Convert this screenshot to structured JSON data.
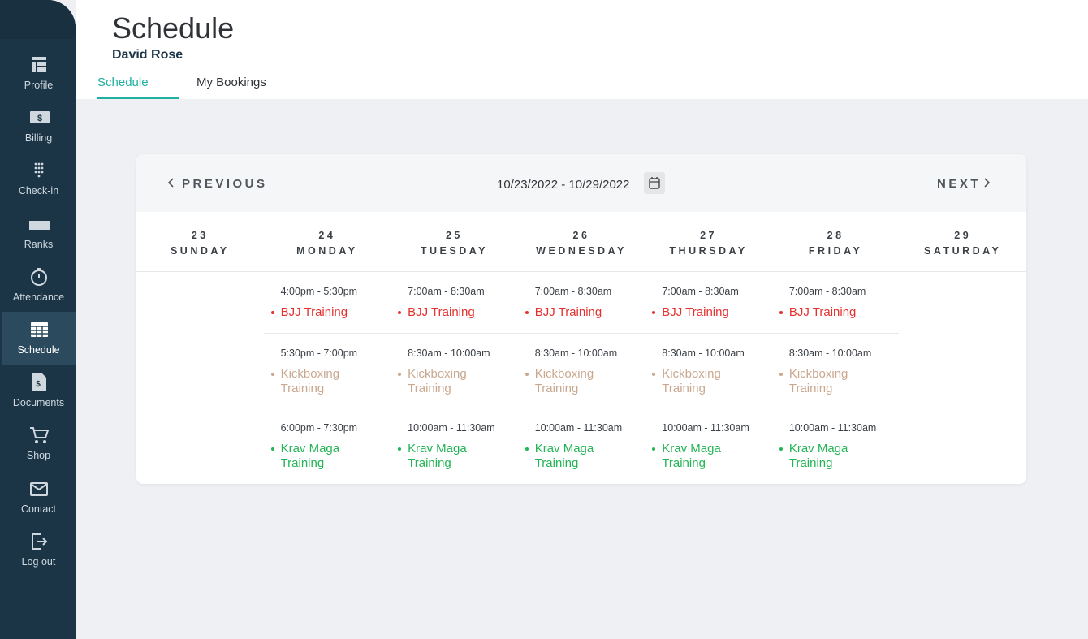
{
  "sidebar": {
    "items": [
      {
        "label": "Profile"
      },
      {
        "label": "Billing"
      },
      {
        "label": "Check-in"
      },
      {
        "label": "Ranks"
      },
      {
        "label": "Attendance"
      },
      {
        "label": "Schedule",
        "active": true
      },
      {
        "label": "Documents"
      },
      {
        "label": "Shop"
      },
      {
        "label": "Contact"
      },
      {
        "label": "Log out"
      }
    ]
  },
  "header": {
    "title": "Schedule",
    "subtitle": "David Rose",
    "tabs": [
      {
        "label": "Schedule",
        "active": true
      },
      {
        "label": "My Bookings"
      }
    ]
  },
  "calendar": {
    "previous": "PREVIOUS",
    "next": "NEXT",
    "range": "10/23/2022 - 10/29/2022",
    "days": [
      {
        "date": "23",
        "name": "SUNDAY",
        "events": []
      },
      {
        "date": "24",
        "name": "MONDAY",
        "events": [
          {
            "time": "4:00pm - 5:30pm",
            "name": "BJJ Training",
            "color": "#e5312f"
          },
          {
            "time": "5:30pm - 7:00pm",
            "name": "Kickboxing Training",
            "color": "#c9a88f"
          },
          {
            "time": "6:00pm - 7:30pm",
            "name": "Krav Maga Training",
            "color": "#22b455"
          }
        ]
      },
      {
        "date": "25",
        "name": "TUESDAY",
        "events": [
          {
            "time": "7:00am - 8:30am",
            "name": "BJJ Training",
            "color": "#e5312f"
          },
          {
            "time": "8:30am - 10:00am",
            "name": "Kickboxing Training",
            "color": "#c9a88f"
          },
          {
            "time": "10:00am - 11:30am",
            "name": "Krav Maga Training",
            "color": "#22b455"
          }
        ]
      },
      {
        "date": "26",
        "name": "WEDNESDAY",
        "events": [
          {
            "time": "7:00am - 8:30am",
            "name": "BJJ Training",
            "color": "#e5312f"
          },
          {
            "time": "8:30am - 10:00am",
            "name": "Kickboxing Training",
            "color": "#c9a88f"
          },
          {
            "time": "10:00am - 11:30am",
            "name": "Krav Maga Training",
            "color": "#22b455"
          }
        ]
      },
      {
        "date": "27",
        "name": "THURSDAY",
        "events": [
          {
            "time": "7:00am - 8:30am",
            "name": "BJJ Training",
            "color": "#e5312f"
          },
          {
            "time": "8:30am - 10:00am",
            "name": "Kickboxing Training",
            "color": "#c9a88f"
          },
          {
            "time": "10:00am - 11:30am",
            "name": "Krav Maga Training",
            "color": "#22b455"
          }
        ]
      },
      {
        "date": "28",
        "name": "FRIDAY",
        "events": [
          {
            "time": "7:00am - 8:30am",
            "name": "BJJ Training",
            "color": "#e5312f"
          },
          {
            "time": "8:30am - 10:00am",
            "name": "Kickboxing Training",
            "color": "#c9a88f"
          },
          {
            "time": "10:00am - 11:30am",
            "name": "Krav Maga Training",
            "color": "#22b455"
          }
        ]
      },
      {
        "date": "29",
        "name": "SATURDAY",
        "events": []
      }
    ]
  }
}
